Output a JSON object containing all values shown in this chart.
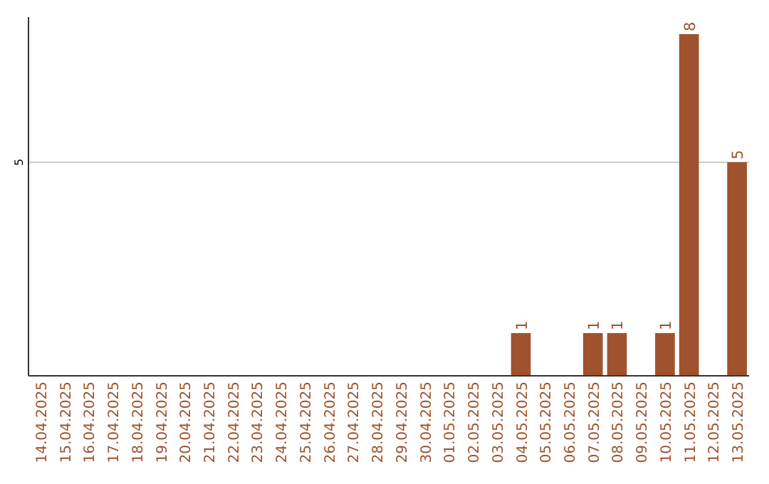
{
  "chart_data": {
    "type": "bar",
    "categories": [
      "14.04.2025",
      "15.04.2025",
      "16.04.2025",
      "17.04.2025",
      "18.04.2025",
      "19.04.2025",
      "20.04.2025",
      "21.04.2025",
      "22.04.2025",
      "23.04.2025",
      "24.04.2025",
      "25.04.2025",
      "26.04.2025",
      "27.04.2025",
      "28.04.2025",
      "29.04.2025",
      "30.04.2025",
      "01.05.2025",
      "02.05.2025",
      "03.05.2025",
      "04.05.2025",
      "05.05.2025",
      "06.05.2025",
      "07.05.2025",
      "08.05.2025",
      "09.05.2025",
      "10.05.2025",
      "11.05.2025",
      "12.05.2025",
      "13.05.2025"
    ],
    "values": [
      null,
      null,
      null,
      null,
      null,
      null,
      null,
      null,
      null,
      null,
      null,
      null,
      null,
      null,
      null,
      null,
      null,
      null,
      null,
      null,
      1,
      null,
      null,
      1,
      1,
      null,
      1,
      8,
      null,
      5
    ],
    "color": "#a0522d",
    "ylim": [
      0,
      8.4
    ],
    "yticks": [
      5
    ],
    "grid": "y",
    "data_labels": true
  }
}
